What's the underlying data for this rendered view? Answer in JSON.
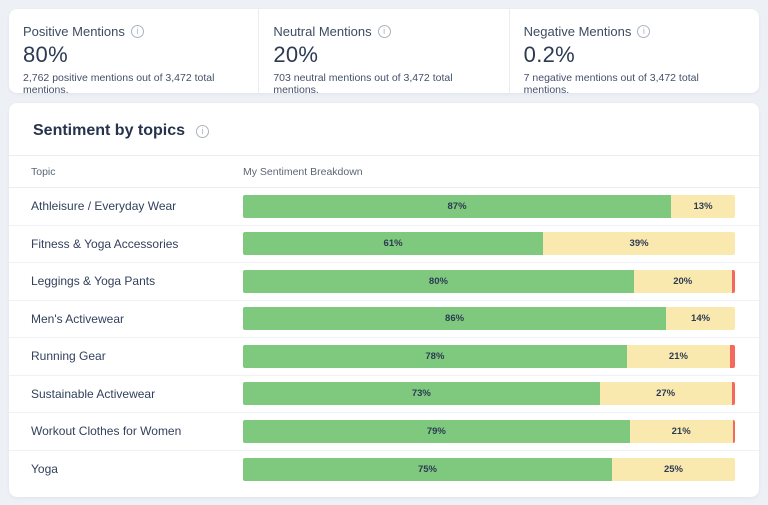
{
  "summary_cards": [
    {
      "title": "Positive Mentions",
      "value": "80%",
      "description": "2,762 positive mentions out of 3,472 total mentions."
    },
    {
      "title": "Neutral Mentions",
      "value": "20%",
      "description": "703 neutral mentions out of 3,472 total mentions."
    },
    {
      "title": "Negative Mentions",
      "value": "0.2%",
      "description": "7 negative mentions out of 3,472 total mentions."
    }
  ],
  "topics_section": {
    "title": "Sentiment by topics",
    "columns": {
      "topic": "Topic",
      "breakdown": "My Sentiment Breakdown"
    }
  },
  "icons": {
    "info": "i"
  },
  "colors": {
    "positive": "#7ec97e",
    "neutral": "#fae9af",
    "negative": "#f4695c",
    "page_bg": "#edf1f6",
    "panel_bg": "#ffffff"
  },
  "chart_data": {
    "type": "bar",
    "orientation": "horizontal",
    "stacked": true,
    "unit": "%",
    "xlim": [
      0,
      100
    ],
    "grid": false,
    "legend": false,
    "title": "Sentiment by topics",
    "categories": [
      "Athleisure / Everyday Wear",
      "Fitness & Yoga Accessories",
      "Leggings & Yoga Pants",
      "Men's Activewear",
      "Running Gear",
      "Sustainable Activewear",
      "Workout Clothes for Women",
      "Yoga"
    ],
    "series": [
      {
        "name": "Positive",
        "color": "#7ec97e",
        "values": [
          87,
          61,
          80,
          86,
          78,
          73,
          79,
          75
        ],
        "labels": [
          "87%",
          "61%",
          "80%",
          "86%",
          "78%",
          "73%",
          "79%",
          "75%"
        ]
      },
      {
        "name": "Neutral",
        "color": "#fae9af",
        "values": [
          13,
          39,
          20,
          14,
          21,
          27,
          21,
          25
        ],
        "labels": [
          "13%",
          "39%",
          "20%",
          "14%",
          "21%",
          "27%",
          "21%",
          "25%"
        ]
      },
      {
        "name": "Negative",
        "color": "#f4695c",
        "values": [
          0,
          0,
          0.7,
          0,
          1,
          0.7,
          0.5,
          0
        ],
        "labels": null
      }
    ]
  }
}
